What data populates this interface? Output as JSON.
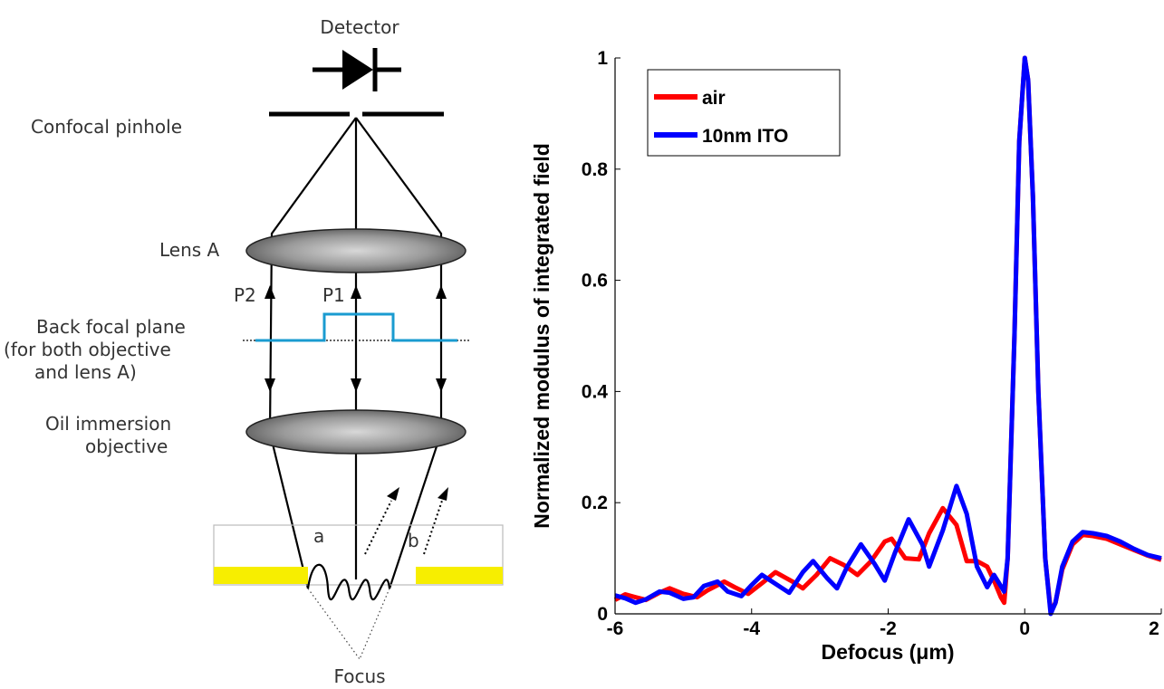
{
  "diagram": {
    "labels": {
      "detector": "Detector",
      "confocal_pinhole": "Confocal pinhole",
      "lens_a": "Lens A",
      "p2": "P2",
      "p1": "P1",
      "back_focal_plane_1": "Back focal plane",
      "back_focal_plane_2": "(for both objective",
      "back_focal_plane_3": "and lens A)",
      "oil_immersion_1": "Oil immersion",
      "oil_immersion_2": "objective",
      "a": "a",
      "b": "b",
      "focus": "Focus"
    },
    "colors": {
      "lens": "#7a7a7a",
      "bfp": "#1a9bd0",
      "film": "#f7ee00"
    }
  },
  "chart_data": {
    "type": "line",
    "xlabel": "Defocus (μm)",
    "ylabel": "Normalized modulus of integrated field",
    "xlim": [
      -6,
      2
    ],
    "ylim": [
      0,
      1
    ],
    "x_ticks": [
      "-6",
      "-4",
      "-2",
      "0",
      "2"
    ],
    "y_ticks": [
      "0",
      "0.2",
      "0.4",
      "0.6",
      "0.8",
      "1"
    ],
    "legend": "top-left",
    "grid": false,
    "series": [
      {
        "name": "air",
        "color": "#ff0000",
        "x": [
          -6.0,
          -5.85,
          -5.7,
          -5.55,
          -5.35,
          -5.2,
          -5.0,
          -4.8,
          -4.65,
          -4.4,
          -4.25,
          -4.05,
          -3.85,
          -3.65,
          -3.4,
          -3.25,
          -3.05,
          -2.85,
          -2.65,
          -2.45,
          -2.25,
          -2.05,
          -1.95,
          -1.75,
          -1.55,
          -1.4,
          -1.2,
          -1.0,
          -0.85,
          -0.7,
          -0.55,
          -0.45,
          -0.35,
          -0.3,
          -0.25,
          -0.15,
          -0.08,
          0.0,
          0.05,
          0.12,
          0.2,
          0.3,
          0.38,
          0.45,
          0.55,
          0.7,
          0.85,
          1.0,
          1.2,
          1.4,
          1.6,
          1.8,
          2.0
        ],
        "y": [
          0.025,
          0.035,
          0.03,
          0.025,
          0.038,
          0.046,
          0.036,
          0.03,
          0.042,
          0.058,
          0.048,
          0.036,
          0.055,
          0.075,
          0.058,
          0.046,
          0.07,
          0.1,
          0.088,
          0.07,
          0.095,
          0.13,
          0.135,
          0.1,
          0.098,
          0.145,
          0.19,
          0.16,
          0.095,
          0.095,
          0.085,
          0.06,
          0.03,
          0.02,
          0.1,
          0.5,
          0.85,
          1.0,
          0.96,
          0.75,
          0.4,
          0.1,
          0.005,
          0.02,
          0.08,
          0.125,
          0.142,
          0.14,
          0.135,
          0.125,
          0.115,
          0.105,
          0.097
        ]
      },
      {
        "name": "10nm ITO",
        "color": "#0000ff",
        "x": [
          -6.0,
          -5.85,
          -5.7,
          -5.55,
          -5.35,
          -5.2,
          -5.0,
          -4.85,
          -4.7,
          -4.5,
          -4.35,
          -4.15,
          -4.0,
          -3.85,
          -3.6,
          -3.45,
          -3.25,
          -3.1,
          -2.9,
          -2.75,
          -2.6,
          -2.4,
          -2.2,
          -2.05,
          -1.9,
          -1.7,
          -1.5,
          -1.4,
          -1.2,
          -1.0,
          -0.85,
          -0.7,
          -0.55,
          -0.45,
          -0.35,
          -0.3,
          -0.25,
          -0.15,
          -0.08,
          0.0,
          0.05,
          0.12,
          0.2,
          0.3,
          0.38,
          0.45,
          0.55,
          0.7,
          0.85,
          1.0,
          1.2,
          1.4,
          1.6,
          1.8,
          2.0
        ],
        "y": [
          0.033,
          0.028,
          0.02,
          0.026,
          0.04,
          0.038,
          0.027,
          0.03,
          0.05,
          0.058,
          0.04,
          0.032,
          0.052,
          0.07,
          0.05,
          0.038,
          0.075,
          0.095,
          0.065,
          0.046,
          0.085,
          0.125,
          0.09,
          0.06,
          0.11,
          0.17,
          0.125,
          0.085,
          0.15,
          0.23,
          0.18,
          0.085,
          0.048,
          0.07,
          0.05,
          0.04,
          0.1,
          0.5,
          0.85,
          1.0,
          0.96,
          0.75,
          0.4,
          0.1,
          0.0,
          0.02,
          0.085,
          0.13,
          0.147,
          0.145,
          0.14,
          0.13,
          0.117,
          0.106,
          0.1
        ]
      }
    ]
  }
}
